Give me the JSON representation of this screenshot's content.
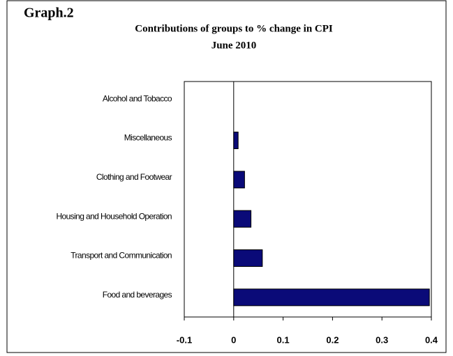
{
  "label": "Graph.2",
  "chart_data": {
    "type": "barh",
    "title": "Contributions of groups to % change in CPI",
    "subtitle": "June 2010",
    "categories": [
      "Alcohol and Tobacco",
      "Miscellaneous",
      "Clothing and Footwear",
      "Housing and Household Operation",
      "Transport and Communication",
      "Food and beverages"
    ],
    "values": [
      0,
      0.009,
      0.022,
      0.035,
      0.058,
      0.396
    ],
    "color": "#0a0a78",
    "xlim": [
      -0.1,
      0.4
    ],
    "xticks": [
      -0.1,
      0,
      0.1,
      0.2,
      0.3,
      0.4
    ]
  }
}
